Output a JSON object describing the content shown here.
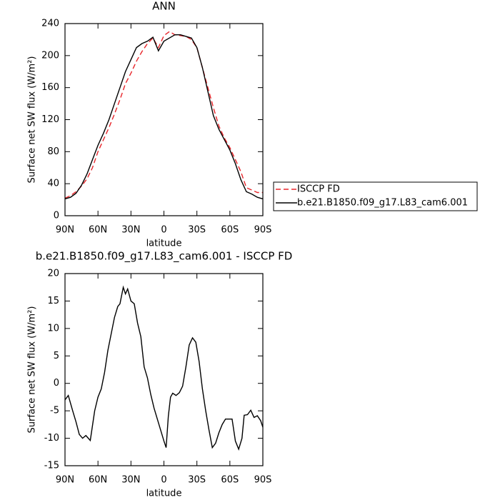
{
  "chart_data": [
    {
      "type": "line",
      "title": "ANN",
      "x_label": "latitude",
      "y_label": "Surface net SW flux (W/m²)",
      "x": [
        90,
        85,
        80,
        75,
        70,
        65,
        60,
        55,
        50,
        45,
        40,
        35,
        30,
        25,
        20,
        15,
        10,
        5,
        0,
        -5,
        -10,
        -15,
        -20,
        -25,
        -30,
        -35,
        -40,
        -45,
        -50,
        -55,
        -60,
        -65,
        -70,
        -75,
        -80,
        -85,
        -90
      ],
      "series": [
        {
          "name": "ISCCP FD",
          "color": "#e8262b",
          "dashed": true,
          "values": [
            22,
            25,
            30,
            37,
            46,
            60,
            80,
            95,
            110,
            127,
            145,
            165,
            178,
            193,
            205,
            215,
            222,
            210,
            225,
            230,
            226,
            225,
            224,
            220,
            210,
            185,
            160,
            135,
            112,
            97,
            85,
            70,
            55,
            35,
            32,
            29,
            29
          ]
        },
        {
          "name": "b.e21.B1850.f09_g17.L83_cam6.001",
          "color": "#000000",
          "dashed": false,
          "values": [
            21,
            23,
            28,
            38,
            52,
            70,
            88,
            103,
            120,
            140,
            160,
            180,
            195,
            210,
            215,
            218,
            223,
            206,
            218,
            222,
            226,
            226,
            224,
            222,
            210,
            185,
            155,
            125,
            108,
            95,
            82,
            65,
            45,
            30,
            27,
            23,
            21
          ]
        }
      ],
      "xlim": [
        90,
        -90
      ],
      "xticks": [
        {
          "value": 90,
          "label": "90N"
        },
        {
          "value": 60,
          "label": "60N"
        },
        {
          "value": 30,
          "label": "30N"
        },
        0,
        {
          "value": -30,
          "label": "30S"
        },
        {
          "value": -60,
          "label": "60S"
        },
        {
          "value": -90,
          "label": "90S"
        }
      ],
      "ylim": [
        0,
        240
      ],
      "yticks": [
        0,
        40,
        80,
        120,
        160,
        200,
        240
      ],
      "legend": "right"
    },
    {
      "type": "line",
      "title": "b.e21.B1850.f09_g17.L83_cam6.001 - ISCCP FD",
      "x_label": "latitude",
      "y_label": "Surface net SW flux (W/m²)",
      "x": [
        90,
        87,
        83,
        80,
        77,
        74,
        71,
        67,
        63,
        60,
        57,
        54,
        51,
        48,
        45,
        42,
        40,
        37,
        35,
        33,
        30,
        27,
        24,
        21,
        18,
        15,
        12,
        9,
        6,
        3,
        0,
        -2,
        -4,
        -6,
        -8,
        -11,
        -14,
        -17,
        -20,
        -23,
        -26,
        -29,
        -32,
        -35,
        -38,
        -41,
        -44,
        -47,
        -50,
        -53,
        -56,
        -62,
        -65,
        -68,
        -71,
        -73,
        -76,
        -79,
        -82,
        -85,
        -88,
        -90
      ],
      "values": [
        -3,
        -2.2,
        -5,
        -7,
        -9.3,
        -10,
        -9.5,
        -10.4,
        -5,
        -2.5,
        -1,
        2,
        6,
        9,
        12,
        14,
        14.5,
        17.5,
        16.3,
        17.2,
        15,
        14.5,
        11,
        8.5,
        3,
        1,
        -2,
        -4.5,
        -6.5,
        -8.5,
        -10.5,
        -11.7,
        -6,
        -2.5,
        -1.8,
        -2.2,
        -1.7,
        -0.5,
        3,
        7,
        8.3,
        7.5,
        4,
        -1,
        -5,
        -8.5,
        -11.7,
        -10.9,
        -9,
        -7.5,
        -6.5,
        -6.5,
        -10.5,
        -12,
        -10,
        -5.8,
        -5.7,
        -4.9,
        -6.2,
        -5.9,
        -6.8,
        -8
      ],
      "color": "#000000",
      "xlim": [
        90,
        -90
      ],
      "xticks": [
        {
          "value": 90,
          "label": "90N"
        },
        {
          "value": 60,
          "label": "60N"
        },
        {
          "value": 30,
          "label": "30N"
        },
        0,
        {
          "value": -30,
          "label": "30S"
        },
        {
          "value": -60,
          "label": "60S"
        },
        {
          "value": -90,
          "label": "90S"
        }
      ],
      "ylim": [
        -15,
        20
      ],
      "yticks": [
        -15,
        -10,
        -5,
        0,
        5,
        10,
        15,
        20
      ]
    }
  ]
}
